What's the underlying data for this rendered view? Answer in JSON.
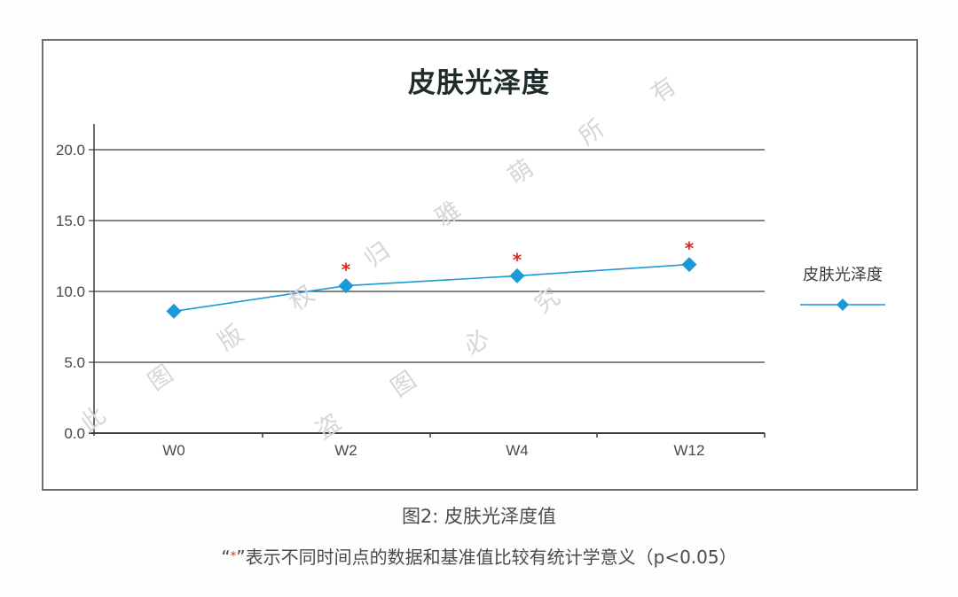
{
  "chart_data": {
    "type": "line",
    "title": "皮肤光泽度",
    "categories": [
      "W0",
      "W2",
      "W4",
      "W12"
    ],
    "series": [
      {
        "name": "皮肤光泽度",
        "values": [
          8.6,
          10.4,
          11.1,
          11.9
        ],
        "color": "#1a9ad6",
        "marker": "diamond",
        "significant": [
          false,
          true,
          true,
          true
        ]
      }
    ],
    "xlabel": "",
    "ylabel": "",
    "ylim": [
      0,
      20
    ],
    "yticks": [
      "0.0",
      "5.0",
      "10.0",
      "15.0",
      "20.0"
    ],
    "grid": true,
    "legend_position": "right",
    "annotation_symbol": "*",
    "annotation_color": "#d42a1e"
  },
  "title": "皮肤光泽度",
  "legend": {
    "label": "皮肤光泽度"
  },
  "caption": {
    "figure_label": "图2: 皮肤光泽度值",
    "note_open_quote": "“",
    "note_star": "*",
    "note_close_quote": "”",
    "note_text": "表示不同时间点的数据和基准值比较有统计学意义（p<0.05）"
  },
  "watermark": [
    "此",
    "图",
    "版",
    "权",
    "归",
    "雅",
    "萌",
    "所",
    "有",
    "盗",
    "图",
    "必",
    "究"
  ],
  "colors": {
    "line": "#1a9ad6",
    "star": "#d42a1e",
    "axis": "#3c3c3c",
    "frame": "#6e6e6e",
    "title": "#1f2b2b"
  }
}
